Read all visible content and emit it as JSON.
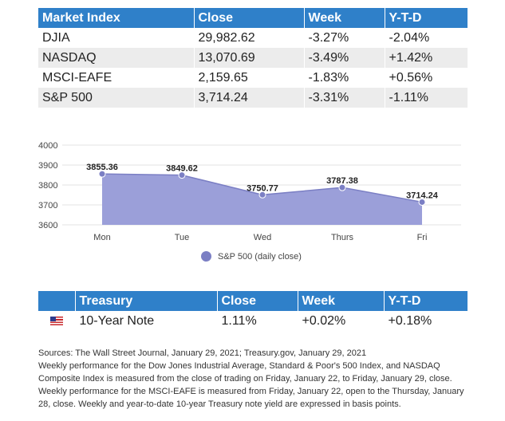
{
  "index_table": {
    "headers": [
      "Market Index",
      "Close",
      "Week",
      "Y-T-D"
    ],
    "rows": [
      [
        "DJIA",
        "29,982.62",
        "-3.27%",
        "-2.04%"
      ],
      [
        "NASDAQ",
        "13,070.69",
        "-3.49%",
        "+1.42%"
      ],
      [
        "MSCI-EAFE",
        "2,159.65",
        "-1.83%",
        "+0.56%"
      ],
      [
        "S&P 500",
        "3,714.24",
        "-3.31%",
        "-1.11%"
      ]
    ]
  },
  "chart_data": {
    "type": "area",
    "categories": [
      "Mon",
      "Tue",
      "Wed",
      "Thurs",
      "Fri"
    ],
    "series": [
      {
        "name": "S&P 500 (daily close)",
        "values": [
          3855.36,
          3849.62,
          3750.77,
          3787.38,
          3714.24
        ]
      }
    ],
    "data_labels": [
      "3855.36",
      "3849.62",
      "3750.77",
      "3787.38",
      "3714.24"
    ],
    "y_ticks": [
      "4000",
      "3900",
      "3800",
      "3700",
      "3600"
    ],
    "ylim": [
      3600,
      4000
    ],
    "grid": true,
    "legend_position": "bottom",
    "color": "#7b7fc4",
    "fill_color": "#9b9fd9"
  },
  "legend_label": "S&P 500 (daily close)",
  "treasury_table": {
    "headers": [
      "",
      "Treasury",
      "Close",
      "Week",
      "Y-T-D"
    ],
    "row": {
      "flag_icon": "us-flag-icon",
      "name": "10-Year Note",
      "close": "1.11%",
      "week": "+0.02%",
      "ytd": "+0.18%"
    }
  },
  "notes": {
    "line1": "Sources: The Wall Street Journal, January 29, 2021; Treasury.gov, January 29, 2021",
    "line2": "Weekly performance for the Dow Jones Industrial Average, Standard & Poor's 500 Index, and NASDAQ Composite Index is measured from the close of trading on Friday, January 22, to Friday, January 29, close. Weekly performance for the MSCI-EAFE is measured from Friday, January 22, open to the Thursday, January 28, close. Weekly and year-to-date 10-year Treasury note yield are expressed in basis points."
  }
}
